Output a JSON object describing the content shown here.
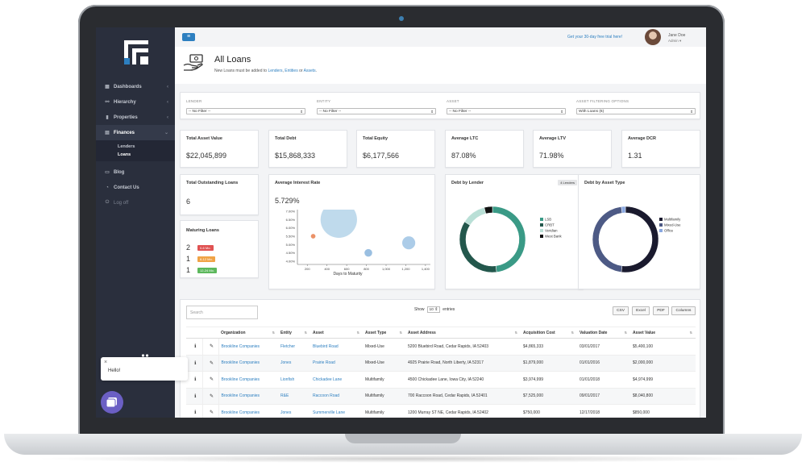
{
  "app": {
    "title": "All Loans",
    "subtitle_prefix": "New Loans must be added to ",
    "subtitle_links": [
      "Lenders",
      "Entities",
      "Assets"
    ],
    "subtitle_sep1": ", ",
    "subtitle_sep2": " or ",
    "subtitle_end": "."
  },
  "topbar": {
    "trial": "Get your 30-day free trial here!",
    "user_name": "Jane Doe",
    "user_role": "Admin ▾"
  },
  "sidebar": {
    "items": [
      {
        "label": "Dashboards",
        "icon": "dashboard-icon"
      },
      {
        "label": "Hierarchy",
        "icon": "hierarchy-icon"
      },
      {
        "label": "Properties",
        "icon": "properties-icon"
      },
      {
        "label": "Finances",
        "icon": "finances-icon"
      },
      {
        "label": "Blog",
        "icon": "blog-icon"
      },
      {
        "label": "Contact Us",
        "icon": "contact-icon"
      },
      {
        "label": "Log off",
        "icon": "logoff-icon"
      }
    ],
    "sub_items": [
      "Lenders",
      "Loans"
    ]
  },
  "filters": {
    "lender": {
      "label": "LENDER",
      "value": "-- No Filter --"
    },
    "entity": {
      "label": "ENTITY",
      "value": "-- No Filter --"
    },
    "asset": {
      "label": "ASSET",
      "value": "-- No Filter --"
    },
    "options": {
      "label": "ASSET FILTERING OPTIONS",
      "value": "With Loans (6)"
    }
  },
  "stats": [
    {
      "label": "Total Asset Value",
      "value": "$22,045,899"
    },
    {
      "label": "Total Debt",
      "value": "$15,868,333"
    },
    {
      "label": "Total Equity",
      "value": "$6,177,566"
    },
    {
      "label": "Average LTC",
      "value": "87.08%"
    },
    {
      "label": "Average LTV",
      "value": "71.98%"
    },
    {
      "label": "Average DCR",
      "value": "1.31"
    }
  ],
  "outstanding": {
    "label": "Total Outstanding Loans",
    "value": "6"
  },
  "maturing": {
    "label": "Maturing Loans",
    "rows": [
      {
        "count": "2",
        "badge": "0-6 Mo.",
        "color": "#e05252"
      },
      {
        "count": "1",
        "badge": "6-12 Mo.",
        "color": "#f0a346"
      },
      {
        "count": "1",
        "badge": "12-24 Mo.",
        "color": "#5cb85c"
      }
    ]
  },
  "chart_data": [
    {
      "type": "scatter",
      "title": "Average Interest Rate",
      "headline": "5.729%",
      "xlabel": "Days to Maturity",
      "ylabel": "",
      "x_ticks": [
        "200",
        "400",
        "600",
        "800",
        "1,000",
        "1,200",
        "1,400"
      ],
      "y_ticks": [
        "7.00%",
        "6.50%",
        "6.00%",
        "5.50%",
        "5.00%",
        "4.50%",
        "4.00%"
      ],
      "xlim": [
        100,
        1450
      ],
      "ylim": [
        3.8,
        7.1
      ],
      "points": [
        {
          "x": 520,
          "y": 6.5,
          "r": 95,
          "color": "#b8d6ea"
        },
        {
          "x": 260,
          "y": 5.5,
          "r": 12,
          "color": "#e98658"
        },
        {
          "x": 820,
          "y": 4.5,
          "r": 20,
          "color": "#8fb8de"
        },
        {
          "x": 1230,
          "y": 5.1,
          "r": 34,
          "color": "#a3c6e6"
        }
      ]
    },
    {
      "type": "pie",
      "title": "Debt by Lender",
      "badge": "4 Lenders",
      "legend": "right",
      "slices": [
        {
          "label": "LSB",
          "value": 48,
          "color": "#3a9a86"
        },
        {
          "label": "CRBT",
          "value": 36,
          "color": "#23574c"
        },
        {
          "label": "Veridian",
          "value": 12,
          "color": "#b9dfd6"
        },
        {
          "label": "West Bank",
          "value": 4,
          "color": "#111111"
        }
      ]
    },
    {
      "type": "pie",
      "title": "Debt by Asset Type",
      "legend": "right",
      "slices": [
        {
          "label": "Multifamily",
          "value": 52,
          "color": "#1a1a2e"
        },
        {
          "label": "Mixed-Use",
          "value": 46,
          "color": "#4d5a85"
        },
        {
          "label": "Office",
          "value": 2,
          "color": "#8aa8e0"
        }
      ]
    }
  ],
  "table": {
    "search_placeholder": "Search",
    "show_label": "Show",
    "show_value": "10",
    "entries_label": "entries",
    "buttons": [
      "CSV",
      "Excel",
      "PDF",
      "Columns"
    ],
    "headers": [
      "Organization",
      "Entity",
      "Asset",
      "Asset Type",
      "Asset Address",
      "Acquisition Cost",
      "Valuation Date",
      "Asset Value"
    ],
    "rows": [
      [
        "Brookline Companies",
        "Fletcher",
        "Bluebird Road",
        "Mixed-Use",
        "5200 Bluebird Road, Cedar Rapids, IA 52403",
        "$4,865,333",
        "03/01/2017",
        "$5,400,100"
      ],
      [
        "Brookline Companies",
        "Jones",
        "Prairie Road",
        "Mixed-Use",
        "4925 Prairie Road, North Liberty, IA 52317",
        "$1,879,000",
        "01/01/2016",
        "$2,000,000"
      ],
      [
        "Brookline Companies",
        "Lionfish",
        "Chickadee Lane",
        "Multifamily",
        "4500 Chickadee Lane, Iowa City, IA 52240",
        "$3,974,999",
        "01/01/2018",
        "$4,974,999"
      ],
      [
        "Brookline Companies",
        "R&E",
        "Raccoon Road",
        "Multifamily",
        "700 Raccoon Road, Cedar Rapids, IA 52401",
        "$7,525,000",
        "09/01/2017",
        "$8,040,800"
      ],
      [
        "Brookline Companies",
        "Jones",
        "Summerville Lane",
        "Multifamily",
        "1200 Murray ST NE, Cedar Rapids, IA 52402",
        "$750,000",
        "12/17/2018",
        "$850,000"
      ]
    ]
  },
  "chat": {
    "hello": "Hello!",
    "close": "×"
  }
}
